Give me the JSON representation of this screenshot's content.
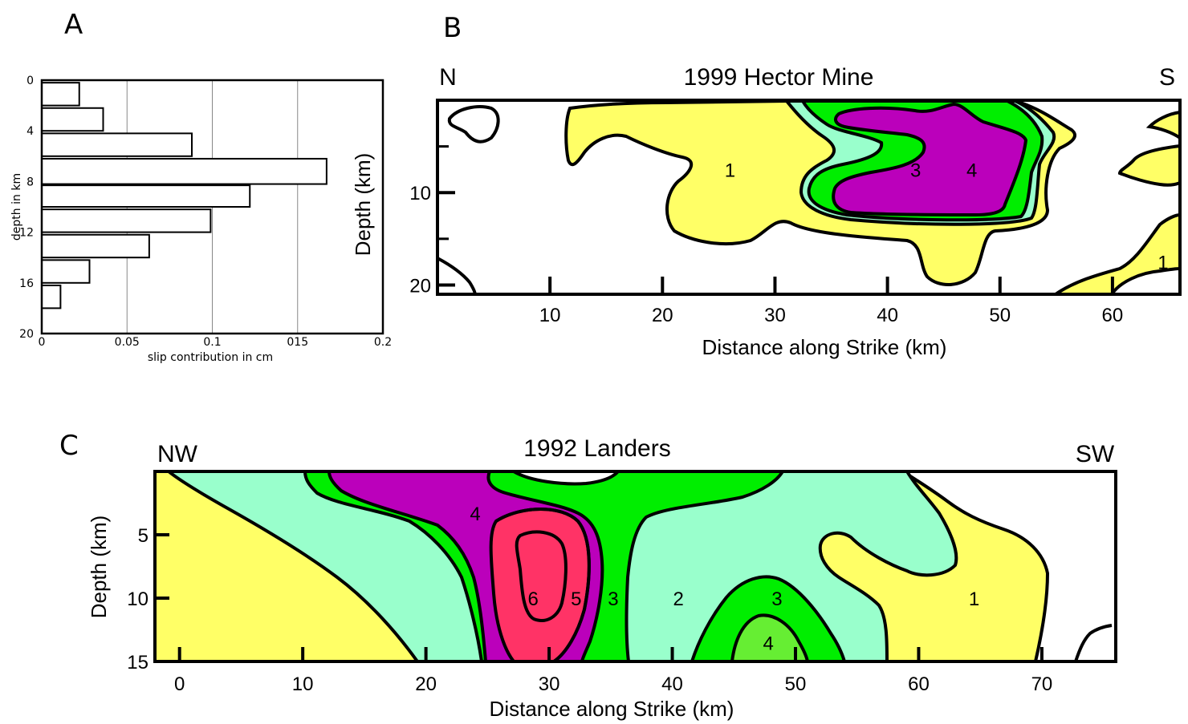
{
  "panels": {
    "a": {
      "letter": "A"
    },
    "b": {
      "letter": "B",
      "title": "1999 Hector Mine",
      "left_dir": "N",
      "right_dir": "S",
      "xlabel": "Distance along Strike (km)",
      "ylabel": "Depth (km)"
    },
    "c": {
      "letter": "C",
      "title": "1992 Landers",
      "left_dir": "NW",
      "right_dir": "SW",
      "xlabel": "Distance along Strike (km)",
      "ylabel": "Depth (km)"
    }
  },
  "colors": {
    "level1": "#FFFF66",
    "level2": "#99FFCC",
    "level3": "#00EE00",
    "level4": "#BB00BB",
    "level5": "#BB00BB",
    "level6": "#FF3366",
    "level4_small": "#66EE33",
    "bar_fill": "#ffffff",
    "grid": "#888888"
  },
  "chart_data": [
    {
      "id": "A",
      "type": "bar",
      "orientation": "horizontal",
      "xlabel": "slip contribution in cm",
      "ylabel": "depth in km",
      "xlim": [
        0,
        0.2
      ],
      "ylim": [
        0,
        20
      ],
      "x_ticks": [
        "0",
        "0.05",
        "0.1",
        "015",
        "0.2"
      ],
      "x_tick_values": [
        0,
        0.05,
        0.1,
        0.15,
        0.2
      ],
      "y_ticks": [
        "0",
        "4",
        "8",
        "12",
        "16",
        "20"
      ],
      "y_tick_values": [
        0,
        4,
        8,
        12,
        16,
        20
      ],
      "grid": "vertical",
      "bars": [
        {
          "depth_top": 0.2,
          "depth_bottom": 2.0,
          "value": 0.022
        },
        {
          "depth_top": 2.2,
          "depth_bottom": 4.0,
          "value": 0.036
        },
        {
          "depth_top": 4.2,
          "depth_bottom": 6.0,
          "value": 0.088
        },
        {
          "depth_top": 6.2,
          "depth_bottom": 8.2,
          "value": 0.167
        },
        {
          "depth_top": 8.3,
          "depth_bottom": 10.0,
          "value": 0.122
        },
        {
          "depth_top": 10.2,
          "depth_bottom": 12.0,
          "value": 0.099
        },
        {
          "depth_top": 12.2,
          "depth_bottom": 14.0,
          "value": 0.063
        },
        {
          "depth_top": 14.2,
          "depth_bottom": 16.0,
          "value": 0.028
        },
        {
          "depth_top": 16.2,
          "depth_bottom": 18.0,
          "value": 0.011
        }
      ]
    },
    {
      "id": "B",
      "type": "heatmap",
      "subtype": "filled contour",
      "title": "1999 Hector Mine",
      "xlabel": "Distance along Strike (km)",
      "ylabel": "Depth (km)",
      "xlim": [
        0,
        66
      ],
      "ylim": [
        21,
        0
      ],
      "x_ticks": [
        10,
        20,
        30,
        40,
        50,
        60
      ],
      "y_ticks": [
        10,
        20
      ],
      "contour_labels": [
        {
          "label": "1",
          "x": 26,
          "y": 7.5
        },
        {
          "label": "3",
          "x": 42.5,
          "y": 7.5
        },
        {
          "label": "4",
          "x": 47.5,
          "y": 7.5
        },
        {
          "label": "1",
          "x": 64.5,
          "y": 17.5
        }
      ]
    },
    {
      "id": "C",
      "type": "heatmap",
      "subtype": "filled contour",
      "title": "1992 Landers",
      "xlabel": "Distance along Strike (km)",
      "ylabel": "Depth (km)",
      "xlim": [
        -2,
        76
      ],
      "ylim": [
        15,
        0
      ],
      "x_ticks": [
        0,
        10,
        20,
        30,
        40,
        50,
        60,
        70
      ],
      "y_ticks": [
        5,
        10,
        15
      ],
      "contour_labels": [
        {
          "label": "4",
          "x": 24,
          "y": 3.3
        },
        {
          "label": "6",
          "x": 28.7,
          "y": 10
        },
        {
          "label": "5",
          "x": 32.2,
          "y": 10
        },
        {
          "label": "3",
          "x": 35.2,
          "y": 10
        },
        {
          "label": "2",
          "x": 40.5,
          "y": 10
        },
        {
          "label": "3",
          "x": 48.5,
          "y": 10
        },
        {
          "label": "4",
          "x": 47.8,
          "y": 13.5
        },
        {
          "label": "1",
          "x": 64.5,
          "y": 10
        }
      ]
    }
  ]
}
